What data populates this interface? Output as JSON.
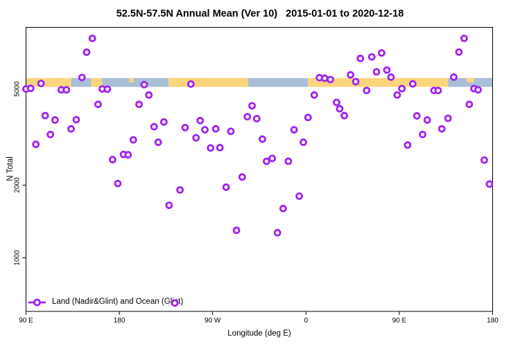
{
  "title": "52.5N-57.5N Annual Mean (Ver 10)   2015-01-01 to 2020-12-18",
  "chart_data": {
    "type": "scatter",
    "title": "52.5N-57.5N Annual Mean (Ver 10)   2015-01-01 to 2020-12-18",
    "xlabel": "Longitude (deg E)",
    "ylabel": "N Total",
    "x_axis": {
      "min": 90,
      "max": 540,
      "note": "longitude axis wraps eastward: 90E to 180, 90W, 0, 90E, 180",
      "ticks": [
        {
          "pos": 90,
          "label": "90 E"
        },
        {
          "pos": 180,
          "label": "180"
        },
        {
          "pos": 270,
          "label": "90 W"
        },
        {
          "pos": 360,
          "label": "0"
        },
        {
          "pos": 450,
          "label": "90 E"
        },
        {
          "pos": 540,
          "label": "180"
        }
      ]
    },
    "y_axis": {
      "scale": "log",
      "min": 600,
      "max": 9000,
      "ticks": [
        {
          "pos": 1000,
          "label": "1000"
        },
        {
          "pos": 2000,
          "label": "2000"
        },
        {
          "pos": 5000,
          "label": "5000"
        }
      ]
    },
    "legend": {
      "label": "Land (Nadir&Glint) and Ocean (Glint)",
      "position": "bottom-left"
    },
    "marker": {
      "shape": "open-circle",
      "color": "#A020F0"
    },
    "map_band": {
      "n_low": 5100,
      "n_high": 5550,
      "land_color": "#FBD57E",
      "ocean_color": "#A9BED8",
      "segments": [
        {
          "from": 90,
          "to": 133.5,
          "surface": "land"
        },
        {
          "from": 133.5,
          "to": 152.8,
          "surface": "ocean"
        },
        {
          "from": 152.8,
          "to": 163.4,
          "surface": "land"
        },
        {
          "from": 163.4,
          "to": 227.5,
          "surface": "ocean"
        },
        {
          "from": 227.5,
          "to": 304.3,
          "surface": "land"
        },
        {
          "from": 304.3,
          "to": 362,
          "surface": "ocean"
        },
        {
          "from": 362,
          "to": 497,
          "surface": "land"
        },
        {
          "from": 497,
          "to": 540,
          "surface": "ocean"
        },
        {
          "from": 189.5,
          "to": 194,
          "surface": "land",
          "partial": "top"
        },
        {
          "from": 515,
          "to": 522,
          "surface": "land",
          "partial": "top"
        }
      ]
    },
    "points": [
      [
        154,
        8100
      ],
      [
        148.5,
        7100
      ],
      [
        144,
        5580
      ],
      [
        104.5,
        5270
      ],
      [
        90,
        5000
      ],
      [
        94.5,
        5030
      ],
      [
        124,
        4960
      ],
      [
        129,
        4960
      ],
      [
        163.5,
        5000
      ],
      [
        168.5,
        4990
      ],
      [
        204,
        5210
      ],
      [
        208.5,
        4720
      ],
      [
        159.5,
        4320
      ],
      [
        199,
        4320
      ],
      [
        108.5,
        3880
      ],
      [
        118,
        3720
      ],
      [
        138.5,
        3730
      ],
      [
        133.5,
        3420
      ],
      [
        113.5,
        3240
      ],
      [
        99.5,
        2950
      ],
      [
        223,
        3650
      ],
      [
        213.5,
        3490
      ],
      [
        193.5,
        3080
      ],
      [
        217.5,
        3010
      ],
      [
        184,
        2680
      ],
      [
        188.5,
        2670
      ],
      [
        173.5,
        2550
      ],
      [
        249,
        5240
      ],
      [
        373,
        5570
      ],
      [
        378,
        5540
      ],
      [
        383.5,
        5470
      ],
      [
        368,
        4720
      ],
      [
        389.5,
        4400
      ],
      [
        308,
        4260
      ],
      [
        303.5,
        3840
      ],
      [
        312.5,
        3770
      ],
      [
        362,
        3810
      ],
      [
        258,
        3700
      ],
      [
        243.5,
        3460
      ],
      [
        262.5,
        3390
      ],
      [
        273,
        3420
      ],
      [
        254,
        3140
      ],
      [
        287.5,
        3340
      ],
      [
        348.5,
        3390
      ],
      [
        318,
        3100
      ],
      [
        357.5,
        3010
      ],
      [
        268,
        2850
      ],
      [
        277,
        2860
      ],
      [
        327.5,
        2580
      ],
      [
        322,
        2510
      ],
      [
        343,
        2510
      ],
      [
        512.5,
        8100
      ],
      [
        507.5,
        7110
      ],
      [
        433,
        7050
      ],
      [
        423.5,
        6790
      ],
      [
        412.5,
        6690
      ],
      [
        428,
        5890
      ],
      [
        438,
        5990
      ],
      [
        442,
        5600
      ],
      [
        403,
        5720
      ],
      [
        408,
        5360
      ],
      [
        418.5,
        4930
      ],
      [
        502.5,
        5600
      ],
      [
        463,
        5250
      ],
      [
        452.5,
        5020
      ],
      [
        448,
        4720
      ],
      [
        483.5,
        4930
      ],
      [
        487.5,
        4930
      ],
      [
        522,
        5020
      ],
      [
        526,
        4960
      ],
      [
        517.5,
        4320
      ],
      [
        392.5,
        4140
      ],
      [
        397,
        3880
      ],
      [
        467,
        3870
      ],
      [
        477,
        3720
      ],
      [
        497,
        3780
      ],
      [
        491,
        3420
      ],
      [
        472.5,
        3240
      ],
      [
        458,
        2930
      ],
      [
        532,
        2540
      ],
      [
        178.5,
        2030
      ],
      [
        238.5,
        1910
      ],
      [
        228,
        1650
      ],
      [
        298.5,
        2160
      ],
      [
        283,
        1960
      ],
      [
        353.5,
        1800
      ],
      [
        338,
        1600
      ],
      [
        293,
        1300
      ],
      [
        332.5,
        1270
      ],
      [
        537,
        2020
      ],
      [
        233.5,
        650
      ]
    ]
  }
}
